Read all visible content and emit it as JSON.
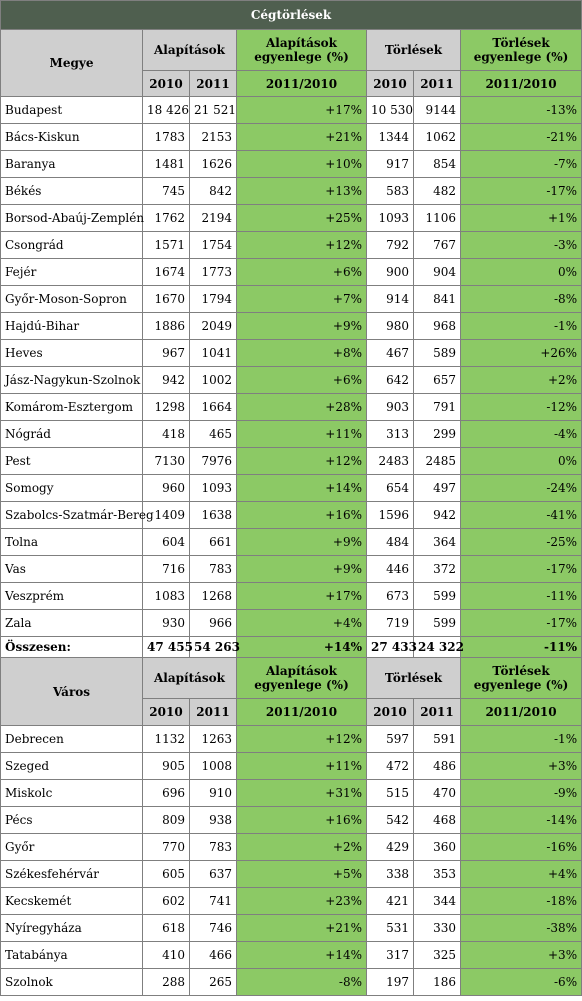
{
  "title": "Cégtörlések",
  "county_section": {
    "name_header": "Megye",
    "founding_header": "Alapítások",
    "founding_change_header": "Alapítások egyenlege (%)",
    "deletion_header": "Törlések",
    "deletion_change_header": "Törlések egyenlege (%)",
    "year1": "2010",
    "year2": "2011",
    "period": "2011/2010",
    "rows": [
      {
        "name": "Budapest",
        "f2010": "18 426",
        "f2011": "21 521",
        "fchg": "+17%",
        "d2010": "10 530",
        "d2011": "9144",
        "dchg": "-13%"
      },
      {
        "name": "Bács-Kiskun",
        "f2010": "1783",
        "f2011": "2153",
        "fchg": "+21%",
        "d2010": "1344",
        "d2011": "1062",
        "dchg": "-21%"
      },
      {
        "name": "Baranya",
        "f2010": "1481",
        "f2011": "1626",
        "fchg": "+10%",
        "d2010": "917",
        "d2011": "854",
        "dchg": "-7%"
      },
      {
        "name": "Békés",
        "f2010": "745",
        "f2011": "842",
        "fchg": "+13%",
        "d2010": "583",
        "d2011": "482",
        "dchg": "-17%"
      },
      {
        "name": "Borsod-Abaúj-Zemplén",
        "f2010": "1762",
        "f2011": "2194",
        "fchg": "+25%",
        "d2010": "1093",
        "d2011": "1106",
        "dchg": "+1%"
      },
      {
        "name": "Csongrád",
        "f2010": "1571",
        "f2011": "1754",
        "fchg": "+12%",
        "d2010": "792",
        "d2011": "767",
        "dchg": "-3%"
      },
      {
        "name": "Fejér",
        "f2010": "1674",
        "f2011": "1773",
        "fchg": "+6%",
        "d2010": "900",
        "d2011": "904",
        "dchg": "0%"
      },
      {
        "name": "Győr-Moson-Sopron",
        "f2010": "1670",
        "f2011": "1794",
        "fchg": "+7%",
        "d2010": "914",
        "d2011": "841",
        "dchg": "-8%"
      },
      {
        "name": "Hajdú-Bihar",
        "f2010": "1886",
        "f2011": "2049",
        "fchg": "+9%",
        "d2010": "980",
        "d2011": "968",
        "dchg": "-1%"
      },
      {
        "name": "Heves",
        "f2010": "967",
        "f2011": "1041",
        "fchg": "+8%",
        "d2010": "467",
        "d2011": "589",
        "dchg": "+26%"
      },
      {
        "name": "Jász-Nagykun-Szolnok",
        "f2010": "942",
        "f2011": "1002",
        "fchg": "+6%",
        "d2010": "642",
        "d2011": "657",
        "dchg": "+2%"
      },
      {
        "name": "Komárom-Esztergom",
        "f2010": "1298",
        "f2011": "1664",
        "fchg": "+28%",
        "d2010": "903",
        "d2011": "791",
        "dchg": "-12%"
      },
      {
        "name": "Nógrád",
        "f2010": "418",
        "f2011": "465",
        "fchg": "+11%",
        "d2010": "313",
        "d2011": "299",
        "dchg": "-4%"
      },
      {
        "name": "Pest",
        "f2010": "7130",
        "f2011": "7976",
        "fchg": "+12%",
        "d2010": "2483",
        "d2011": "2485",
        "dchg": "0%"
      },
      {
        "name": "Somogy",
        "f2010": "960",
        "f2011": "1093",
        "fchg": "+14%",
        "d2010": "654",
        "d2011": "497",
        "dchg": "-24%"
      },
      {
        "name": "Szabolcs-Szatmár-Bereg",
        "f2010": "1409",
        "f2011": "1638",
        "fchg": "+16%",
        "d2010": "1596",
        "d2011": "942",
        "dchg": "-41%"
      },
      {
        "name": "Tolna",
        "f2010": "604",
        "f2011": "661",
        "fchg": "+9%",
        "d2010": "484",
        "d2011": "364",
        "dchg": "-25%"
      },
      {
        "name": "Vas",
        "f2010": "716",
        "f2011": "783",
        "fchg": "+9%",
        "d2010": "446",
        "d2011": "372",
        "dchg": "-17%"
      },
      {
        "name": "Veszprém",
        "f2010": "1083",
        "f2011": "1268",
        "fchg": "+17%",
        "d2010": "673",
        "d2011": "599",
        "dchg": "-11%"
      },
      {
        "name": "Zala",
        "f2010": "930",
        "f2011": "966",
        "fchg": "+4%",
        "d2010": "719",
        "d2011": "599",
        "dchg": "-17%"
      }
    ],
    "total": {
      "name": "Összesen:",
      "f2010": "47 455",
      "f2011": "54 263",
      "fchg": "+14%",
      "d2010": "27 433",
      "d2011": "24 322",
      "dchg": "-11%"
    }
  },
  "city_section": {
    "name_header": "Város",
    "founding_header": "Alapítások",
    "founding_change_header": "Alapítások egyenlege (%)",
    "deletion_header": "Törlések",
    "deletion_change_header": "Törlések egyenlege (%)",
    "year1": "2010",
    "year2": "2011",
    "period": "2011/2010",
    "rows": [
      {
        "name": "Debrecen",
        "f2010": "1132",
        "f2011": "1263",
        "fchg": "+12%",
        "d2010": "597",
        "d2011": "591",
        "dchg": "-1%"
      },
      {
        "name": "Szeged",
        "f2010": "905",
        "f2011": "1008",
        "fchg": "+11%",
        "d2010": "472",
        "d2011": "486",
        "dchg": "+3%"
      },
      {
        "name": "Miskolc",
        "f2010": "696",
        "f2011": "910",
        "fchg": "+31%",
        "d2010": "515",
        "d2011": "470",
        "dchg": "-9%"
      },
      {
        "name": "Pécs",
        "f2010": "809",
        "f2011": "938",
        "fchg": "+16%",
        "d2010": "542",
        "d2011": "468",
        "dchg": "-14%"
      },
      {
        "name": "Győr",
        "f2010": "770",
        "f2011": "783",
        "fchg": "+2%",
        "d2010": "429",
        "d2011": "360",
        "dchg": "-16%"
      },
      {
        "name": "Székesfehérvár",
        "f2010": "605",
        "f2011": "637",
        "fchg": "+5%",
        "d2010": "338",
        "d2011": "353",
        "dchg": "+4%"
      },
      {
        "name": "Kecskemét",
        "f2010": "602",
        "f2011": "741",
        "fchg": "+23%",
        "d2010": "421",
        "d2011": "344",
        "dchg": "-18%"
      },
      {
        "name": "Nyíregyháza",
        "f2010": "618",
        "f2011": "746",
        "fchg": "+21%",
        "d2010": "531",
        "d2011": "330",
        "dchg": "-38%"
      },
      {
        "name": "Tatabánya",
        "f2010": "410",
        "f2011": "466",
        "fchg": "+14%",
        "d2010": "317",
        "d2011": "325",
        "dchg": "+3%"
      },
      {
        "name": "Szolnok",
        "f2010": "288",
        "f2011": "265",
        "fchg": "-8%",
        "d2010": "197",
        "d2011": "186",
        "dchg": "-6%"
      }
    ]
  },
  "colors": {
    "title_bg": "#4f5f4f",
    "header_gray": "#cfcfcf",
    "accent_green": "#8cc965",
    "border": "#7f7f7f"
  }
}
